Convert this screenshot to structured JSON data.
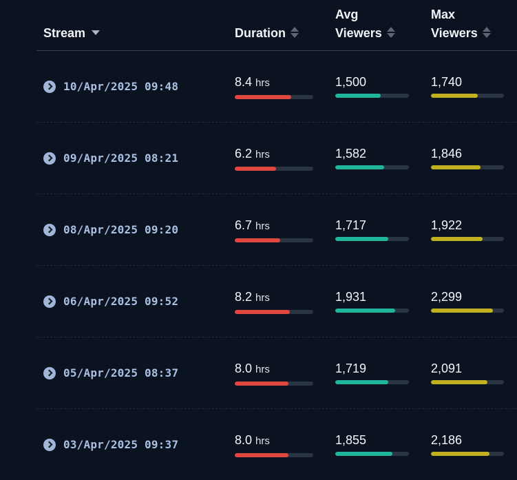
{
  "colors": {
    "duration": "#e2473f",
    "avg": "#1fb59b",
    "max": "#c2b21f"
  },
  "header": {
    "stream": "Stream",
    "duration": "Duration",
    "avg_line1": "Avg",
    "avg_line2": "Viewers",
    "max_line1": "Max",
    "max_line2": "Viewers"
  },
  "unit": "hrs",
  "rows": [
    {
      "stream": "10/Apr/2025 09:48",
      "duration": "8.4",
      "duration_frac": 0.72,
      "avg": "1,500",
      "avg_frac": 0.62,
      "max": "1,740",
      "max_frac": 0.64
    },
    {
      "stream": "09/Apr/2025 08:21",
      "duration": "6.2",
      "duration_frac": 0.53,
      "avg": "1,582",
      "avg_frac": 0.66,
      "max": "1,846",
      "max_frac": 0.68
    },
    {
      "stream": "08/Apr/2025 09:20",
      "duration": "6.7",
      "duration_frac": 0.58,
      "avg": "1,717",
      "avg_frac": 0.72,
      "max": "1,922",
      "max_frac": 0.71
    },
    {
      "stream": "06/Apr/2025 09:52",
      "duration": "8.2",
      "duration_frac": 0.7,
      "avg": "1,931",
      "avg_frac": 0.81,
      "max": "2,299",
      "max_frac": 0.85
    },
    {
      "stream": "05/Apr/2025 08:37",
      "duration": "8.0",
      "duration_frac": 0.68,
      "avg": "1,719",
      "avg_frac": 0.72,
      "max": "2,091",
      "max_frac": 0.77
    },
    {
      "stream": "03/Apr/2025 09:37",
      "duration": "8.0",
      "duration_frac": 0.68,
      "avg": "1,855",
      "avg_frac": 0.78,
      "max": "2,186",
      "max_frac": 0.8
    }
  ]
}
